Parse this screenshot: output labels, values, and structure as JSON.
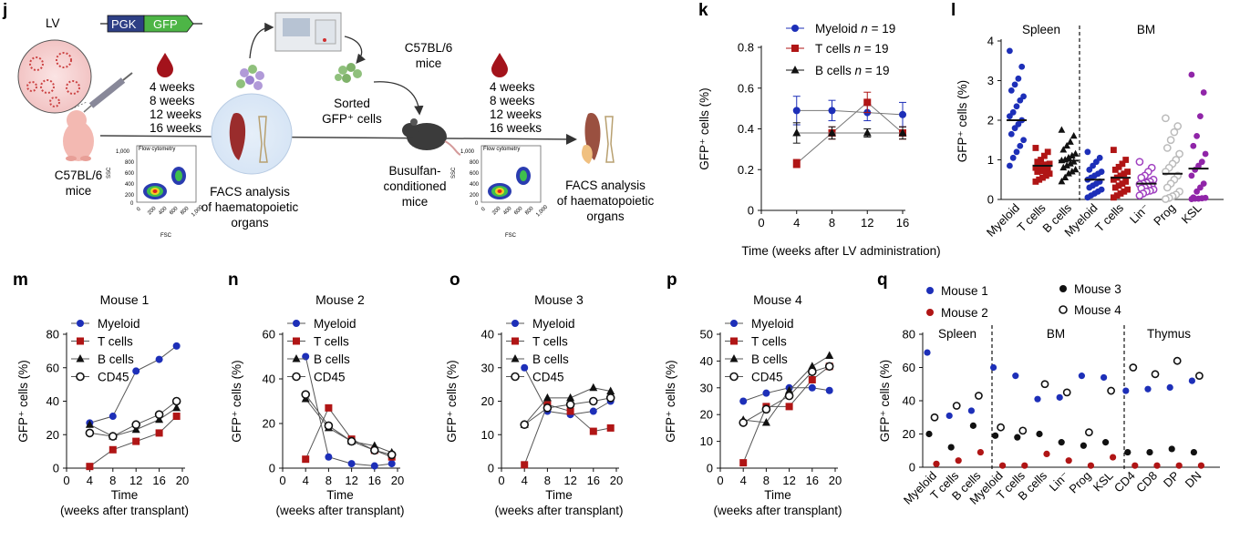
{
  "panels": {
    "j": "j",
    "k": "k",
    "l": "l",
    "m": "m",
    "n": "n",
    "o": "o",
    "p": "p",
    "q": "q"
  },
  "schematic": {
    "lv_label": "LV",
    "pgk_label": "PGK",
    "gfp_label": "GFP",
    "weeks_left": [
      "4 weeks",
      "8 weeks",
      "12 weeks",
      "16 weeks"
    ],
    "weeks_right": [
      "4 weeks",
      "8 weeks",
      "12 weeks",
      "16 weeks"
    ],
    "donor_mice": [
      "C57BL/6",
      "mice"
    ],
    "recipient_mice": [
      "C57BL/6",
      "mice"
    ],
    "sorted_cells": [
      "Sorted",
      "GFP⁺ cells"
    ],
    "busulfan": [
      "Busulfan-",
      "conditioned",
      "mice"
    ],
    "facs_left": [
      "FACS analysis",
      "of haematopoietic",
      "organs"
    ],
    "facs_right": [
      "FACS analysis",
      "of haematopoietic",
      "organs"
    ],
    "flow_title": "Flow cytometry",
    "flow_ylabel": "SSC",
    "flow_xlabel": "FSC",
    "flow_yticks": [
      "1,000",
      "800",
      "600",
      "400",
      "200",
      "0"
    ],
    "flow_xticks": [
      "0",
      "200",
      "400",
      "600",
      "800",
      "1,000"
    ]
  },
  "chart_data": [
    {
      "id": "k",
      "type": "line",
      "title": "",
      "xlabel": "Time (weeks after LV administration)",
      "ylabel": "GFP⁺ cells (%)",
      "x": [
        4,
        8,
        12,
        16
      ],
      "xlim": [
        0,
        16
      ],
      "ylim": [
        0,
        0.8
      ],
      "xticks": [
        "0",
        "4",
        "8",
        "12",
        "16"
      ],
      "yticks": [
        "0",
        "0.2",
        "0.4",
        "0.6",
        "0.8"
      ],
      "series": [
        {
          "name": "Myeloid n = 19",
          "label": "Myeloid",
          "n_text": "n",
          "n_val": " = 19",
          "marker": "circle",
          "color": "#1d2fb8",
          "values": [
            0.49,
            0.49,
            0.48,
            0.47
          ],
          "err": [
            0.07,
            0.05,
            0.04,
            0.06
          ]
        },
        {
          "name": "T cells n = 19",
          "label": "T cells",
          "n_text": "n",
          "n_val": " = 19",
          "marker": "square",
          "color": "#b01515",
          "values": [
            0.23,
            0.38,
            0.53,
            0.38
          ],
          "err": [
            0.02,
            0.03,
            0.05,
            0.03
          ]
        },
        {
          "name": "B cells n = 19",
          "label": "B cells",
          "n_text": "n",
          "n_val": " = 19",
          "marker": "triangle",
          "color": "#111111",
          "values": [
            0.38,
            0.38,
            0.38,
            0.38
          ],
          "err": [
            0.05,
            0.03,
            0.02,
            0.03
          ]
        }
      ]
    },
    {
      "id": "l",
      "type": "scatter",
      "ylabel": "GFP⁺ cells (%)",
      "ylim": [
        0,
        4
      ],
      "yticks": [
        "0",
        "1",
        "2",
        "3",
        "4"
      ],
      "groups": [
        {
          "name": "Spleen"
        },
        {
          "name": "BM"
        }
      ],
      "categories": [
        "Myeloid",
        "T cells",
        "B cells",
        "Myeloid",
        "T cells",
        "Lin⁻",
        "Prog",
        "KSL"
      ],
      "means": [
        2.0,
        0.85,
        0.98,
        0.5,
        0.55,
        0.4,
        0.65,
        0.78
      ],
      "colors": [
        "#1d2fb8",
        "#b01515",
        "#111111",
        "#1d2fb8",
        "#b01515",
        "#a040c0",
        "#bbbbbb",
        "#9025a8"
      ],
      "markers": [
        "circle",
        "square",
        "triangle",
        "circle",
        "square",
        "circle-open",
        "circle-open",
        "circle"
      ],
      "values": [
        [
          3.75,
          3.35,
          3.05,
          2.9,
          2.75,
          2.6,
          2.5,
          2.35,
          2.2,
          2.1,
          2.0,
          1.9,
          1.8,
          1.65,
          1.5,
          1.35,
          1.2,
          1.05,
          0.85
        ],
        [
          1.3,
          1.2,
          1.1,
          1.0,
          0.95,
          0.9,
          0.88,
          0.85,
          0.82,
          0.8,
          0.78,
          0.75,
          0.72,
          0.7,
          0.65,
          0.6,
          0.55,
          0.5,
          0.45
        ],
        [
          1.75,
          1.6,
          1.45,
          1.35,
          1.25,
          1.15,
          1.1,
          1.05,
          1.0,
          0.98,
          0.95,
          0.9,
          0.85,
          0.8,
          0.75,
          0.7,
          0.65,
          0.55,
          0.45
        ],
        [
          1.2,
          1.05,
          0.95,
          0.85,
          0.75,
          0.7,
          0.65,
          0.6,
          0.55,
          0.5,
          0.45,
          0.4,
          0.35,
          0.3,
          0.25,
          0.2,
          0.15,
          0.1,
          0.05
        ],
        [
          1.25,
          1.0,
          0.9,
          0.82,
          0.75,
          0.7,
          0.65,
          0.6,
          0.55,
          0.5,
          0.45,
          0.4,
          0.35,
          0.3,
          0.25,
          0.2,
          0.15,
          0.1,
          0.05
        ],
        [
          0.95,
          0.8,
          0.7,
          0.6,
          0.55,
          0.5,
          0.45,
          0.42,
          0.4,
          0.38,
          0.35,
          0.32,
          0.3,
          0.28,
          0.25,
          0.22,
          0.2,
          0.15,
          0.1
        ],
        [
          2.05,
          1.85,
          1.7,
          1.5,
          1.3,
          1.15,
          1.0,
          0.9,
          0.8,
          0.7,
          0.6,
          0.5,
          0.4,
          0.3,
          0.2,
          0.12,
          0.08,
          0.04,
          0.01
        ],
        [
          3.15,
          2.7,
          2.1,
          1.6,
          1.35,
          1.15,
          0.95,
          0.85,
          0.75,
          0.6,
          0.4,
          0.3,
          0.2,
          0.05,
          0.04,
          0.03,
          0.02,
          0.02,
          0.01
        ]
      ]
    },
    {
      "id": "m",
      "type": "line",
      "title": "Mouse 1",
      "xlabel": "Time",
      "xlabel2": "(weeks after transplant)",
      "ylabel": "GFP⁺ cells (%)",
      "x": [
        4,
        8,
        12,
        16,
        19
      ],
      "xlim": [
        0,
        20
      ],
      "ylim": [
        0,
        80
      ],
      "xticks": [
        "0",
        "4",
        "8",
        "12",
        "16",
        "20"
      ],
      "yticks": [
        "0",
        "20",
        "40",
        "60",
        "80"
      ],
      "series": [
        {
          "name": "Myeloid",
          "marker": "circle",
          "color": "#1d2fb8",
          "values": [
            27,
            31,
            58,
            65,
            73
          ]
        },
        {
          "name": "T cells",
          "marker": "square",
          "color": "#b01515",
          "values": [
            1,
            11,
            16,
            21,
            31
          ]
        },
        {
          "name": "B cells",
          "marker": "triangle",
          "color": "#111111",
          "values": [
            26,
            19,
            23,
            29,
            36
          ]
        },
        {
          "name": "CD45",
          "marker": "circle-open",
          "color": "#111111",
          "values": [
            21,
            19,
            26,
            32,
            40
          ]
        }
      ]
    },
    {
      "id": "n",
      "type": "line",
      "title": "Mouse 2",
      "xlabel": "Time",
      "xlabel2": "(weeks after transplant)",
      "ylabel": "GFP⁺ cells (%)",
      "x": [
        4,
        8,
        12,
        16,
        19
      ],
      "xlim": [
        0,
        20
      ],
      "ylim": [
        0,
        60
      ],
      "xticks": [
        "0",
        "4",
        "8",
        "12",
        "16",
        "20"
      ],
      "yticks": [
        "0",
        "20",
        "40",
        "60"
      ],
      "series": [
        {
          "name": "Myeloid",
          "marker": "circle",
          "color": "#1d2fb8",
          "values": [
            50,
            5,
            2,
            1,
            2
          ]
        },
        {
          "name": "T cells",
          "marker": "square",
          "color": "#b01515",
          "values": [
            4,
            27,
            13,
            8,
            5
          ]
        },
        {
          "name": "B cells",
          "marker": "triangle",
          "color": "#111111",
          "values": [
            31,
            18,
            12,
            10,
            7
          ]
        },
        {
          "name": "CD45",
          "marker": "circle-open",
          "color": "#111111",
          "values": [
            33,
            19,
            12,
            8,
            6
          ]
        }
      ]
    },
    {
      "id": "o",
      "type": "line",
      "title": "Mouse 3",
      "xlabel": "Time",
      "xlabel2": "(weeks after transplant)",
      "ylabel": "GFP⁺ cells (%)",
      "x": [
        4,
        8,
        12,
        16,
        19
      ],
      "xlim": [
        0,
        20
      ],
      "ylim": [
        0,
        40
      ],
      "xticks": [
        "0",
        "4",
        "8",
        "12",
        "16",
        "20"
      ],
      "yticks": [
        "0",
        "10",
        "20",
        "30",
        "40"
      ],
      "series": [
        {
          "name": "Myeloid",
          "marker": "circle",
          "color": "#1d2fb8",
          "values": [
            30,
            17,
            16,
            17,
            20
          ]
        },
        {
          "name": "T cells",
          "marker": "square",
          "color": "#b01515",
          "values": [
            1,
            19,
            17,
            11,
            12
          ]
        },
        {
          "name": "B cells",
          "marker": "triangle",
          "color": "#111111",
          "values": [
            13,
            21,
            21,
            24,
            23
          ]
        },
        {
          "name": "CD45",
          "marker": "circle-open",
          "color": "#111111",
          "values": [
            13,
            18,
            19,
            20,
            21
          ]
        }
      ]
    },
    {
      "id": "p",
      "type": "line",
      "title": "Mouse 4",
      "xlabel": "Time",
      "xlabel2": "(weeks after transplant)",
      "ylabel": "GFP⁺ cells (%)",
      "x": [
        4,
        8,
        12,
        16,
        19
      ],
      "xlim": [
        0,
        20
      ],
      "ylim": [
        0,
        50
      ],
      "xticks": [
        "0",
        "4",
        "8",
        "12",
        "16",
        "20"
      ],
      "yticks": [
        "0",
        "10",
        "20",
        "30",
        "40",
        "50"
      ],
      "series": [
        {
          "name": "Myeloid",
          "marker": "circle",
          "color": "#1d2fb8",
          "values": [
            25,
            28,
            30,
            30,
            29
          ]
        },
        {
          "name": "T cells",
          "marker": "square",
          "color": "#b01515",
          "values": [
            2,
            23,
            23,
            33,
            38
          ]
        },
        {
          "name": "B cells",
          "marker": "triangle",
          "color": "#111111",
          "values": [
            18,
            17,
            29,
            38,
            42
          ]
        },
        {
          "name": "CD45",
          "marker": "circle-open",
          "color": "#111111",
          "values": [
            17,
            22,
            27,
            36,
            38
          ]
        }
      ]
    },
    {
      "id": "q",
      "type": "scatter",
      "ylabel": "GFP⁺ cells (%)",
      "ylim": [
        0,
        80
      ],
      "yticks": [
        "0",
        "20",
        "40",
        "60",
        "80"
      ],
      "groups": [
        {
          "name": "Spleen"
        },
        {
          "name": "BM"
        },
        {
          "name": "Thymus"
        }
      ],
      "categories": [
        "Myeloid",
        "T cells",
        "B cells",
        "Myeloid",
        "T cells",
        "B cells",
        "Lin⁻",
        "Prog",
        "KSL",
        "CD4",
        "CD8",
        "DP",
        "DN"
      ],
      "series": [
        {
          "name": "Mouse 1",
          "marker": "circle",
          "color": "#1d2fb8",
          "values": [
            69,
            31,
            34,
            60,
            55,
            41,
            42,
            55,
            54,
            46,
            47,
            48,
            52
          ]
        },
        {
          "name": "Mouse 2",
          "marker": "circle",
          "color": "#b01515",
          "values": [
            2,
            4,
            9,
            1,
            1,
            8,
            4,
            1,
            6,
            1,
            1,
            1,
            1
          ]
        },
        {
          "name": "Mouse 3",
          "marker": "circle",
          "color": "#111111",
          "values": [
            20,
            12,
            25,
            19,
            18,
            20,
            15,
            13,
            15,
            9,
            9,
            11,
            9
          ]
        },
        {
          "name": "Mouse 4",
          "marker": "circle-open",
          "color": "#111111",
          "values": [
            30,
            37,
            43,
            24,
            22,
            50,
            45,
            21,
            46,
            60,
            56,
            64,
            55
          ]
        }
      ]
    }
  ]
}
